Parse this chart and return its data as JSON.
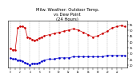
{
  "title": "Milw. Weather: Outdoor Temp.\nvs Dew Point\n(24 Hours)",
  "title_fontsize": 3.8,
  "background_color": "#ffffff",
  "grid_color": "#888888",
  "temp_x": [
    0,
    0.5,
    1,
    1.5,
    2,
    2.5,
    3,
    3.5,
    4,
    4.5,
    5,
    5.5,
    6,
    6.5,
    7,
    8,
    9,
    10,
    11,
    12,
    13,
    14,
    15,
    16,
    17,
    18,
    19,
    20,
    21,
    22,
    23,
    23.5
  ],
  "temp_y": [
    34,
    33,
    33,
    52,
    53,
    53,
    52,
    44,
    43,
    42,
    41,
    42,
    43,
    44,
    45,
    46,
    47,
    48,
    49,
    50,
    51,
    50,
    48,
    46,
    44,
    45,
    47,
    49,
    52,
    53,
    54,
    53
  ],
  "dew_x": [
    0,
    0.5,
    1,
    1.5,
    2,
    2.5,
    3,
    3.5,
    4,
    4.5,
    5,
    5.5,
    6,
    6.5,
    7,
    8,
    9,
    10,
    11,
    12,
    13,
    14,
    15,
    16,
    17,
    18,
    19,
    20,
    21,
    22,
    23,
    23.5
  ],
  "dew_y": [
    26,
    25,
    25,
    24,
    24,
    23,
    22,
    21,
    20,
    21,
    21,
    21,
    22,
    23,
    24,
    25,
    25,
    26,
    26,
    26,
    27,
    27,
    27,
    27,
    27,
    27,
    27,
    28,
    28,
    28,
    28,
    28
  ],
  "temp_color": "#cc0000",
  "dew_color": "#0000cc",
  "ylim": [
    18,
    58
  ],
  "xlim": [
    -0.5,
    24
  ],
  "vgrid_positions": [
    0,
    2,
    4,
    6,
    8,
    10,
    12,
    14,
    16,
    18,
    20,
    22,
    24
  ],
  "yticks": [
    20,
    25,
    30,
    35,
    40,
    45,
    50,
    55
  ],
  "ytick_labels": [
    "20",
    "25",
    "30",
    "35",
    "40",
    "45",
    "50",
    "55"
  ],
  "xticks": [
    0,
    1,
    2,
    3,
    4,
    5,
    6,
    7,
    8,
    9,
    10,
    11,
    12,
    13,
    14,
    15,
    16,
    17,
    18,
    19,
    20,
    21,
    22,
    23
  ],
  "marker_size": 1.8,
  "linewidth": 0.5
}
